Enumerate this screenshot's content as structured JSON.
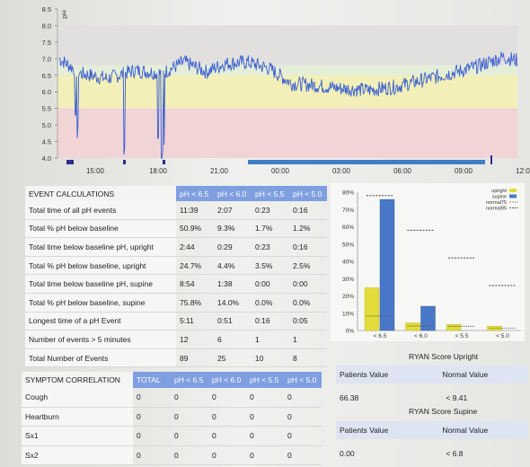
{
  "ph_chart": {
    "y_ticks": [
      "8.5",
      "8.0",
      "7.5",
      "7.0",
      "6.5",
      "6.0",
      "5.5",
      "5.0",
      "4.5",
      "4.0"
    ],
    "x_ticks": [
      "15:00",
      "18:00",
      "21:00",
      "00:00",
      "03:00",
      "06:00",
      "09:00",
      "12:0"
    ],
    "y_axis_label": "pH",
    "colors": {
      "trace": "#3b5fd0",
      "band_gray": "#e1e0de",
      "band_green": "#e4eed9",
      "band_yellow": "#f2f0b8",
      "band_pink": "#f0d4d6"
    }
  },
  "event_table": {
    "title": "EVENT CALCULATIONS",
    "columns": [
      "pH < 6.5",
      "pH < 6.0",
      "pH < 5.5",
      "pH < 5.0"
    ],
    "rows": [
      {
        "label": "Total time of all pH events",
        "values": [
          "11:39",
          "2:07",
          "0:23",
          "0:16"
        ]
      },
      {
        "label": "Total % pH below baseline",
        "values": [
          "50.9%",
          "9.3%",
          "1.7%",
          "1.2%"
        ]
      },
      {
        "label": "Total time below baseline pH, upright",
        "values": [
          "2:44",
          "0:29",
          "0:23",
          "0:16"
        ]
      },
      {
        "label": "Total % pH below baseline, upright",
        "values": [
          "24.7%",
          "4.4%",
          "3.5%",
          "2.5%"
        ]
      },
      {
        "label": "Total time below baseline pH, supine",
        "values": [
          "8:54",
          "1:38",
          "0:00",
          "0:00"
        ]
      },
      {
        "label": "Total % pH below baseline, supine",
        "values": [
          "75.8%",
          "14.0%",
          "0.0%",
          "0.0%"
        ]
      },
      {
        "label": "Longest time of a pH Event",
        "values": [
          "5:11",
          "0:51",
          "0:16",
          "0:05"
        ]
      },
      {
        "label": "Number of events > 5 minutes",
        "values": [
          "12",
          "6",
          "1",
          "1"
        ]
      },
      {
        "label": "Total Number of Events",
        "values": [
          "89",
          "25",
          "10",
          "8"
        ]
      }
    ]
  },
  "symptom_table": {
    "title": "SYMPTOM CORRELATION",
    "columns": [
      "TOTAL",
      "pH < 6.5",
      "pH < 6.0",
      "pH < 5.5",
      "pH < 5.0"
    ],
    "rows": [
      {
        "label": "Cough",
        "values": [
          "0",
          "0",
          "0",
          "0",
          "0"
        ]
      },
      {
        "label": "Heartburn",
        "values": [
          "0",
          "0",
          "0",
          "0",
          "0"
        ]
      },
      {
        "label": "Sx1",
        "values": [
          "0",
          "0",
          "0",
          "0",
          "0"
        ]
      },
      {
        "label": "Sx2",
        "values": [
          "0",
          "0",
          "0",
          "0",
          "0"
        ]
      }
    ]
  },
  "ryan_upright": {
    "title": "RYAN Score Upright",
    "col1": "Patients Value",
    "col2": "Normal Value",
    "patient": "66.38",
    "normal": "< 9.41"
  },
  "ryan_supine": {
    "title": "RYAN Score Supine",
    "col1": "Patients Value",
    "col2": "Normal Value",
    "patient": "0.00",
    "normal": "< 6.8"
  },
  "chart_data": {
    "type": "bar",
    "categories": [
      "< 6.5",
      "< 6.0",
      "< 5.5",
      "< 5.0"
    ],
    "series": [
      {
        "name": "upright",
        "values": [
          24.7,
          4.4,
          3.5,
          2.5
        ],
        "color": "#e3dc3a"
      },
      {
        "name": "supine",
        "values": [
          75.8,
          14.0,
          0.0,
          0.0
        ],
        "color": "#4a78c8"
      }
    ],
    "markers": [
      {
        "name": "normal75",
        "values": [
          8.4,
          2.6,
          2.4,
          1.4
        ]
      },
      {
        "name": "normal95",
        "values": [
          78,
          58,
          42,
          26
        ]
      }
    ],
    "y_ticks": [
      "0%",
      "10%",
      "20%",
      "30%",
      "40%",
      "50%",
      "60%",
      "70%",
      "80%"
    ],
    "ylim": [
      0,
      80
    ],
    "legend": [
      "upright",
      "supine",
      "normal75",
      "normal95"
    ],
    "legend_placement": "top-right"
  }
}
